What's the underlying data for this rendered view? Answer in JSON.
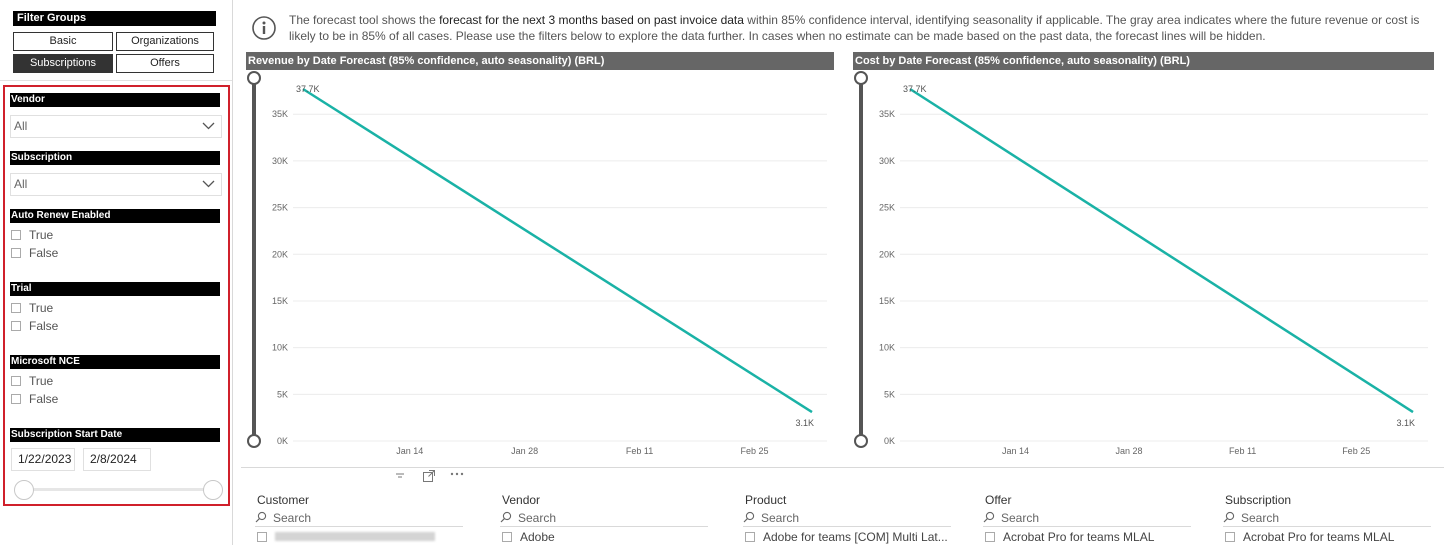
{
  "filter_groups": {
    "title": "Filter Groups",
    "buttons": [
      {
        "label": "Basic",
        "active": false
      },
      {
        "label": "Organizations",
        "active": false
      },
      {
        "label": "Subscriptions",
        "active": true
      },
      {
        "label": "Offers",
        "active": false
      }
    ]
  },
  "filters": {
    "vendor": {
      "header": "Vendor",
      "value": "All"
    },
    "subscription": {
      "header": "Subscription",
      "value": "All"
    },
    "auto_renew": {
      "header": "Auto Renew Enabled",
      "options": [
        "True",
        "False"
      ]
    },
    "trial": {
      "header": "Trial",
      "options": [
        "True",
        "False"
      ]
    },
    "microsoft_nce": {
      "header": "Microsoft NCE",
      "options": [
        "True",
        "False"
      ]
    },
    "start_date": {
      "header": "Subscription Start Date",
      "from": "1/22/2023",
      "to": "2/8/2024"
    }
  },
  "info": {
    "icon": "info-icon",
    "text_1": "The forecast tool shows the ",
    "text_2": "forecast for the next 3 months based on past invoice data",
    "text_3": " within 85% confidence interval, identifying seasonality if applicable. The gray area indicates where the future revenue or cost is likely to be in 85% of all cases. Please use the filters below to explore the data further. In cases when no estimate can be made based on the past data, the forecast lines will be hidden."
  },
  "visual_toolbar": {
    "icons": [
      "filter-icon",
      "focus-mode-icon",
      "more-options-icon"
    ]
  },
  "chart_data": [
    {
      "type": "line",
      "title": "Revenue by Date Forecast (85% confidence, auto seasonality) (BRL)",
      "x_ticks": [
        "Jan 14",
        "Jan 28",
        "Feb 11",
        "Feb 25"
      ],
      "y_ticks": [
        "0K",
        "5K",
        "10K",
        "15K",
        "20K",
        "25K",
        "30K",
        "35K"
      ],
      "ylim": [
        0,
        37700
      ],
      "series": [
        {
          "x": [
            "Jan 1",
            "Mar 3"
          ],
          "values": [
            37700,
            3100
          ]
        }
      ],
      "data_labels": [
        "37.7K",
        "3.1K"
      ],
      "line_color": "#1ab2a6"
    },
    {
      "type": "line",
      "title": "Cost by Date Forecast (85% confidence, auto seasonality) (BRL)",
      "x_ticks": [
        "Jan 14",
        "Jan 28",
        "Feb 11",
        "Feb 25"
      ],
      "y_ticks": [
        "0K",
        "5K",
        "10K",
        "15K",
        "20K",
        "25K",
        "30K",
        "35K"
      ],
      "ylim": [
        0,
        37700
      ],
      "series": [
        {
          "x": [
            "Jan 1",
            "Mar 3"
          ],
          "values": [
            37700,
            3100
          ]
        }
      ],
      "data_labels": [
        "37.7K",
        "3.1K"
      ],
      "line_color": "#1ab2a6"
    }
  ],
  "tables": [
    {
      "header": "Customer",
      "search": "Search",
      "first_row": ""
    },
    {
      "header": "Vendor",
      "search": "Search",
      "first_row": "Adobe"
    },
    {
      "header": "Product",
      "search": "Search",
      "first_row": "Adobe for teams [COM] Multi Lat..."
    },
    {
      "header": "Offer",
      "search": "Search",
      "first_row": "Acrobat Pro for teams MLAL"
    },
    {
      "header": "Subscription",
      "search": "Search",
      "first_row": "Acrobat Pro for teams MLAL"
    }
  ]
}
